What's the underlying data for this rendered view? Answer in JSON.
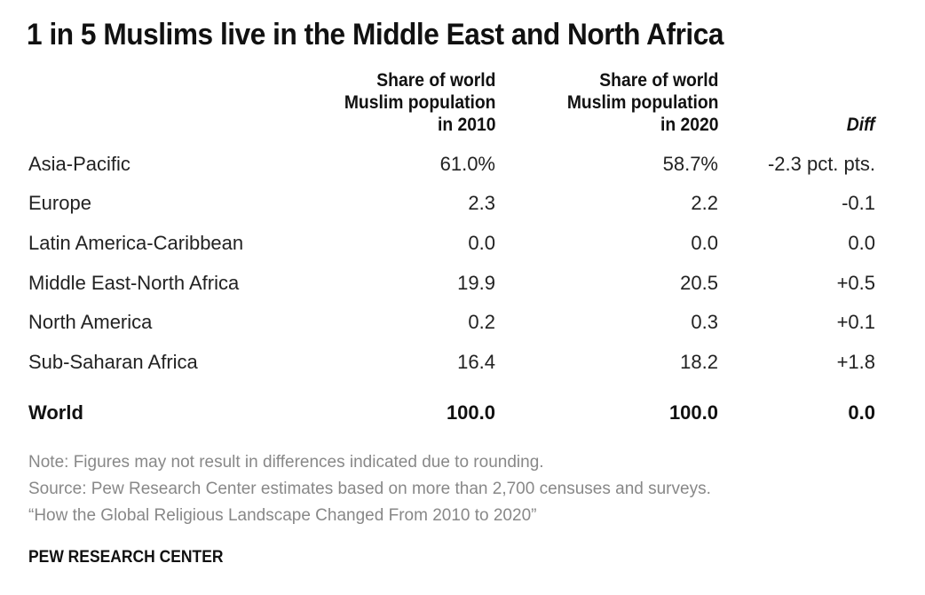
{
  "chart_data": {
    "type": "table",
    "title": "1 in 5 Muslims live in the Middle East and North Africa",
    "columns": [
      [
        "Share of world",
        "Muslim population",
        "in 2010"
      ],
      [
        "Share of world",
        "Muslim population",
        "in 2020"
      ],
      [
        "Diff"
      ]
    ],
    "rows": [
      {
        "region": "Asia-Pacific",
        "share_2010": "61.0%",
        "share_2020": "58.7%",
        "diff": "-2.3 pct. pts."
      },
      {
        "region": "Europe",
        "share_2010": "2.3",
        "share_2020": "2.2",
        "diff": "-0.1"
      },
      {
        "region": "Latin America-Caribbean",
        "share_2010": "0.0",
        "share_2020": "0.0",
        "diff": "0.0"
      },
      {
        "region": "Middle East-North Africa",
        "share_2010": "19.9",
        "share_2020": "20.5",
        "diff": "+0.5"
      },
      {
        "region": "North America",
        "share_2010": "0.2",
        "share_2020": "0.3",
        "diff": "+0.1"
      },
      {
        "region": "Sub-Saharan Africa",
        "share_2010": "16.4",
        "share_2020": "18.2",
        "diff": "+1.8"
      }
    ],
    "total": {
      "region": "World",
      "share_2010": "100.0",
      "share_2020": "100.0",
      "diff": "0.0"
    }
  },
  "notes": {
    "note": "Note: Figures may not result in differences indicated due to rounding.",
    "source": "Source: Pew Research Center estimates based on more than 2,700 censuses and surveys.",
    "report": "“How the Global Religious Landscape Changed From 2010 to 2020”"
  },
  "brand": "PEW RESEARCH CENTER"
}
